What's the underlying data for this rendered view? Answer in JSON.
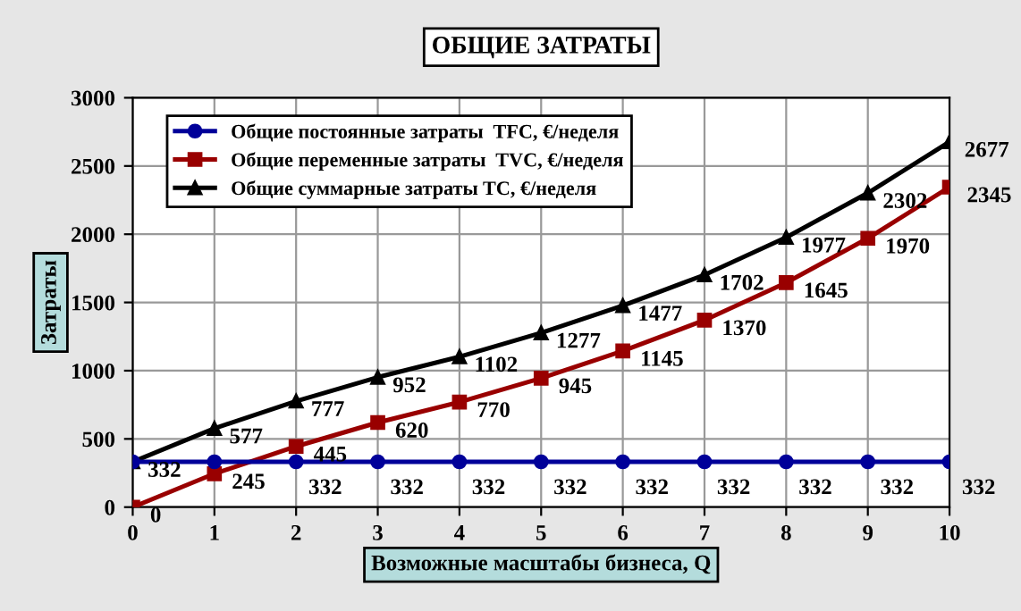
{
  "chart_data": {
    "type": "line",
    "title": "ОБЩИЕ ЗАТРАТЫ",
    "xlabel": "Возможные масштабы бизнеса, Q",
    "ylabel": "Затраты",
    "x": [
      0,
      1,
      2,
      3,
      4,
      5,
      6,
      7,
      8,
      9,
      10
    ],
    "series": [
      {
        "name": "Общие постоянные затраты  TFC, €/неделя",
        "color": "#000099",
        "marker": "circle",
        "values": [
          332,
          332,
          332,
          332,
          332,
          332,
          332,
          332,
          332,
          332,
          332
        ],
        "value_labels": [
          null,
          null,
          "332",
          "332",
          "332",
          "332",
          "332",
          "332",
          "332",
          "332",
          "332"
        ]
      },
      {
        "name": "Общие переменные затраты  TVC, €/неделя",
        "color": "#990000",
        "marker": "square",
        "values": [
          0,
          245,
          445,
          620,
          770,
          945,
          1145,
          1370,
          1645,
          1970,
          2345
        ],
        "value_labels": [
          "0",
          "245",
          "445",
          "620",
          "770",
          "945",
          "1145",
          "1370",
          "1645",
          "1970",
          "2345"
        ]
      },
      {
        "name": "Общие суммарные затраты TC, €/неделя",
        "color": "#000000",
        "marker": "triangle",
        "values": [
          332,
          577,
          777,
          952,
          1102,
          1277,
          1477,
          1702,
          1977,
          2302,
          2677
        ],
        "value_labels": [
          "332",
          "577",
          "777",
          "952",
          "1102",
          "1277",
          "1477",
          "1702",
          "1977",
          "2302",
          "2677"
        ]
      }
    ],
    "xlim": [
      0,
      10
    ],
    "xticks": [
      0,
      1,
      2,
      3,
      4,
      5,
      6,
      7,
      8,
      9,
      10
    ],
    "ylim": [
      0,
      3000
    ],
    "yticks": [
      0,
      500,
      1000,
      1500,
      2000,
      2500,
      3000
    ],
    "grid": true,
    "legend": "top left",
    "line_style": "solid"
  }
}
